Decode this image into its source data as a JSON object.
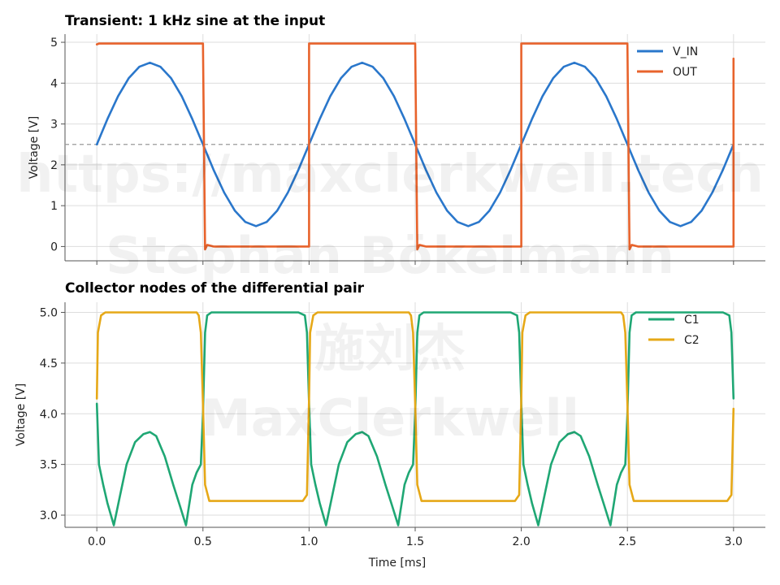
{
  "chart_data": [
    {
      "type": "line",
      "title": "Transient: 1 kHz sine at the input",
      "xlabel": "",
      "ylabel": "Voltage [V]",
      "xlim": [
        -0.15,
        3.15
      ],
      "ylim": [
        -0.35,
        5.2
      ],
      "xticks": [
        "0.0",
        "0.5",
        "1.0",
        "1.5",
        "2.0",
        "2.5",
        "3.0"
      ],
      "yticks": [
        "0",
        "1",
        "2",
        "3",
        "4",
        "5"
      ],
      "grid": true,
      "legend": "top-right",
      "reference_line": 2.5,
      "series": [
        {
          "name": "V_IN",
          "color": "#2a77cb",
          "x": [
            0,
            0.05,
            0.1,
            0.15,
            0.2,
            0.25,
            0.3,
            0.35,
            0.4,
            0.45,
            0.5,
            0.55,
            0.6,
            0.65,
            0.7,
            0.75,
            0.8,
            0.85,
            0.9,
            0.95,
            1.0,
            1.05,
            1.1,
            1.15,
            1.2,
            1.25,
            1.3,
            1.35,
            1.4,
            1.45,
            1.5,
            1.55,
            1.6,
            1.65,
            1.7,
            1.75,
            1.8,
            1.85,
            1.9,
            1.95,
            2.0,
            2.05,
            2.1,
            2.15,
            2.2,
            2.25,
            2.3,
            2.35,
            2.4,
            2.45,
            2.5,
            2.55,
            2.6,
            2.65,
            2.7,
            2.75,
            2.8,
            2.85,
            2.9,
            2.95,
            3.0
          ],
          "y": [
            2.5,
            3.12,
            3.68,
            4.12,
            4.4,
            4.5,
            4.4,
            4.12,
            3.68,
            3.12,
            2.5,
            1.88,
            1.32,
            0.88,
            0.6,
            0.5,
            0.6,
            0.88,
            1.32,
            1.88,
            2.5,
            3.12,
            3.68,
            4.12,
            4.4,
            4.5,
            4.4,
            4.12,
            3.68,
            3.12,
            2.5,
            1.88,
            1.32,
            0.88,
            0.6,
            0.5,
            0.6,
            0.88,
            1.32,
            1.88,
            2.5,
            3.12,
            3.68,
            4.12,
            4.4,
            4.5,
            4.4,
            4.12,
            3.68,
            3.12,
            2.5,
            1.88,
            1.32,
            0.88,
            0.6,
            0.5,
            0.6,
            0.88,
            1.32,
            1.88,
            2.5
          ]
        },
        {
          "name": "OUT",
          "color": "#e8632c",
          "x": [
            0,
            0.01,
            0.49,
            0.5,
            0.51,
            0.52,
            0.55,
            1.0,
            1.0,
            1.01,
            1.49,
            1.5,
            1.51,
            1.52,
            1.55,
            2.0,
            2.0,
            2.01,
            2.49,
            2.5,
            2.51,
            2.52,
            2.55,
            3.0,
            3.0
          ],
          "y": [
            4.95,
            4.97,
            4.97,
            4.97,
            -0.07,
            0.04,
            0.0,
            0.0,
            4.97,
            4.97,
            4.97,
            4.97,
            -0.07,
            0.04,
            0.0,
            0.0,
            4.97,
            4.97,
            4.97,
            4.97,
            -0.07,
            0.04,
            0.0,
            0.0,
            4.6
          ]
        }
      ]
    },
    {
      "type": "line",
      "title": "Collector nodes of the differential pair",
      "xlabel": "Time [ms]",
      "ylabel": "Voltage [V]",
      "xlim": [
        -0.15,
        3.15
      ],
      "ylim": [
        2.88,
        5.1
      ],
      "xticks": [
        "0.0",
        "0.5",
        "1.0",
        "1.5",
        "2.0",
        "2.5",
        "3.0"
      ],
      "yticks": [
        "3.0",
        "3.5",
        "4.0",
        "4.5",
        "5.0"
      ],
      "grid": true,
      "legend": "top-right",
      "series": [
        {
          "name": "C1",
          "color": "#1fa774",
          "x": [
            0,
            0.01,
            0.03,
            0.05,
            0.08,
            0.11,
            0.14,
            0.18,
            0.22,
            0.25,
            0.28,
            0.32,
            0.36,
            0.39,
            0.42,
            0.45,
            0.47,
            0.49,
            0.5,
            0.51,
            0.52,
            0.54,
            0.6,
            0.95,
            0.98,
            0.99,
            1.0,
            1.01,
            1.03,
            1.05,
            1.08,
            1.11,
            1.14,
            1.18,
            1.22,
            1.25,
            1.28,
            1.32,
            1.36,
            1.39,
            1.42,
            1.45,
            1.47,
            1.49,
            1.5,
            1.51,
            1.52,
            1.54,
            1.6,
            1.95,
            1.98,
            1.99,
            2.0,
            2.01,
            2.03,
            2.05,
            2.08,
            2.11,
            2.14,
            2.18,
            2.22,
            2.25,
            2.28,
            2.32,
            2.36,
            2.39,
            2.42,
            2.45,
            2.47,
            2.49,
            2.5,
            2.51,
            2.52,
            2.54,
            2.6,
            2.95,
            2.98,
            2.99,
            3.0
          ],
          "y": [
            4.1,
            3.5,
            3.3,
            3.12,
            2.9,
            3.2,
            3.5,
            3.72,
            3.8,
            3.82,
            3.78,
            3.58,
            3.3,
            3.1,
            2.9,
            3.3,
            3.42,
            3.5,
            4.0,
            4.8,
            4.97,
            5.0,
            5.0,
            5.0,
            4.97,
            4.8,
            4.1,
            3.5,
            3.3,
            3.12,
            2.9,
            3.2,
            3.5,
            3.72,
            3.8,
            3.82,
            3.78,
            3.58,
            3.3,
            3.1,
            2.9,
            3.3,
            3.42,
            3.5,
            4.0,
            4.8,
            4.97,
            5.0,
            5.0,
            5.0,
            4.97,
            4.8,
            4.1,
            3.5,
            3.3,
            3.12,
            2.9,
            3.2,
            3.5,
            3.72,
            3.8,
            3.82,
            3.78,
            3.58,
            3.3,
            3.1,
            2.9,
            3.3,
            3.42,
            3.5,
            4.0,
            4.8,
            4.97,
            5.0,
            5.0,
            5.0,
            4.97,
            4.8,
            4.15
          ]
        },
        {
          "name": "C2",
          "color": "#e6a817",
          "x": [
            0,
            0.005,
            0.02,
            0.04,
            0.47,
            0.48,
            0.49,
            0.5,
            0.51,
            0.53,
            0.6,
            0.97,
            0.99,
            1.0,
            1.005,
            1.02,
            1.04,
            1.47,
            1.48,
            1.49,
            1.5,
            1.51,
            1.53,
            1.6,
            1.97,
            1.99,
            2.0,
            2.005,
            2.02,
            2.04,
            2.47,
            2.48,
            2.49,
            2.5,
            2.51,
            2.53,
            2.6,
            2.97,
            2.99,
            3.0
          ],
          "y": [
            4.15,
            4.8,
            4.97,
            5.0,
            5.0,
            4.97,
            4.8,
            4.1,
            3.3,
            3.14,
            3.14,
            3.14,
            3.2,
            4.15,
            4.8,
            4.97,
            5.0,
            5.0,
            4.97,
            4.8,
            4.1,
            3.3,
            3.14,
            3.14,
            3.14,
            3.2,
            4.15,
            4.8,
            4.97,
            5.0,
            5.0,
            4.97,
            4.8,
            4.1,
            3.3,
            3.14,
            3.14,
            3.14,
            3.2,
            4.05
          ]
        }
      ]
    }
  ],
  "watermark": {
    "lines": [
      "https://maxclerkwell.tech",
      "Stephan Bökelmann",
      "施刘杰",
      "MaxClerkwell"
    ]
  }
}
